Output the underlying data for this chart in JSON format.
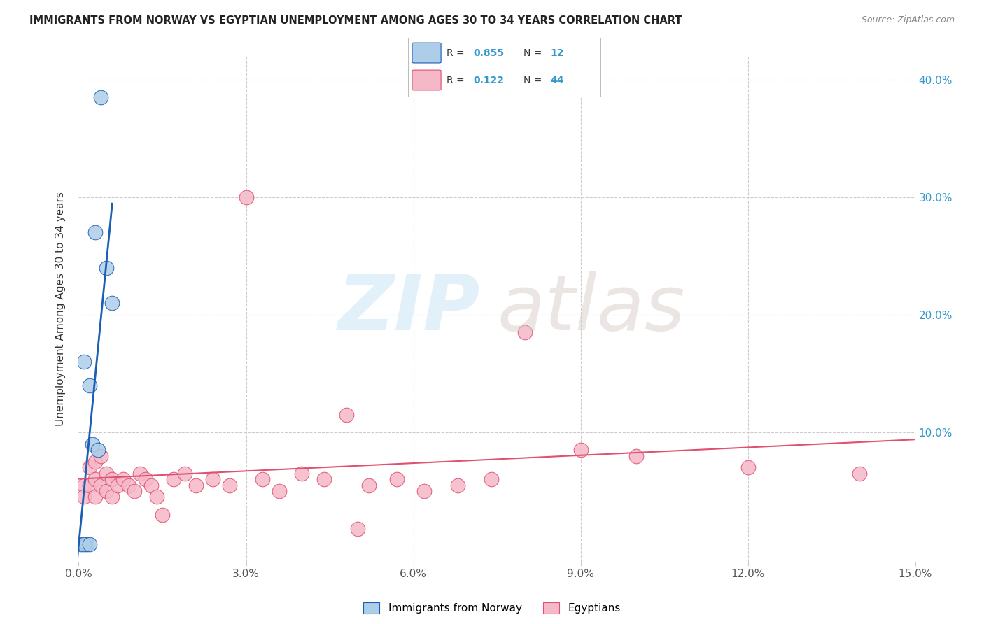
{
  "title": "IMMIGRANTS FROM NORWAY VS EGYPTIAN UNEMPLOYMENT AMONG AGES 30 TO 34 YEARS CORRELATION CHART",
  "source": "Source: ZipAtlas.com",
  "ylabel": "Unemployment Among Ages 30 to 34 years",
  "xlim": [
    0.0,
    0.15
  ],
  "ylim": [
    -0.01,
    0.42
  ],
  "xticks": [
    0.0,
    0.03,
    0.06,
    0.09,
    0.12,
    0.15
  ],
  "xticklabels": [
    "0.0%",
    "3.0%",
    "6.0%",
    "9.0%",
    "12.0%",
    "15.0%"
  ],
  "yticks": [
    0.0,
    0.1,
    0.2,
    0.3,
    0.4
  ],
  "yticklabels_right": [
    "",
    "10.0%",
    "20.0%",
    "30.0%",
    "40.0%"
  ],
  "norway_x": [
    0.0005,
    0.001,
    0.0015,
    0.002,
    0.0025,
    0.003,
    0.0035,
    0.004,
    0.005,
    0.006,
    0.001,
    0.002
  ],
  "norway_y": [
    0.005,
    0.16,
    0.005,
    0.14,
    0.09,
    0.27,
    0.085,
    0.385,
    0.24,
    0.21,
    0.005,
    0.005
  ],
  "egypt_x": [
    0.001,
    0.001,
    0.002,
    0.002,
    0.003,
    0.003,
    0.003,
    0.004,
    0.004,
    0.005,
    0.005,
    0.006,
    0.006,
    0.007,
    0.008,
    0.009,
    0.01,
    0.011,
    0.012,
    0.013,
    0.014,
    0.015,
    0.017,
    0.019,
    0.021,
    0.024,
    0.027,
    0.03,
    0.033,
    0.036,
    0.04,
    0.044,
    0.048,
    0.052,
    0.057,
    0.062,
    0.068,
    0.074,
    0.08,
    0.09,
    0.1,
    0.12,
    0.14,
    0.05
  ],
  "egypt_y": [
    0.055,
    0.045,
    0.07,
    0.055,
    0.075,
    0.06,
    0.045,
    0.08,
    0.055,
    0.065,
    0.05,
    0.06,
    0.045,
    0.055,
    0.06,
    0.055,
    0.05,
    0.065,
    0.06,
    0.055,
    0.045,
    0.03,
    0.06,
    0.065,
    0.055,
    0.06,
    0.055,
    0.3,
    0.06,
    0.05,
    0.065,
    0.06,
    0.115,
    0.055,
    0.06,
    0.05,
    0.055,
    0.06,
    0.185,
    0.085,
    0.08,
    0.07,
    0.065,
    0.018
  ],
  "norway_scatter_color": "#aecde8",
  "egypt_scatter_color": "#f5b8c8",
  "norway_line_color": "#1a5fb4",
  "egypt_line_color": "#e05070",
  "norway_R": "0.855",
  "norway_N": "12",
  "egypt_R": "0.122",
  "egypt_N": "44",
  "background_color": "#ffffff",
  "grid_color": "#cccccc",
  "title_color": "#222222",
  "source_color": "#888888",
  "tick_color": "#555555",
  "right_tick_color": "#3399cc",
  "watermark_zip_color": "#d0e8f5",
  "watermark_atlas_color": "#d8ccc8"
}
